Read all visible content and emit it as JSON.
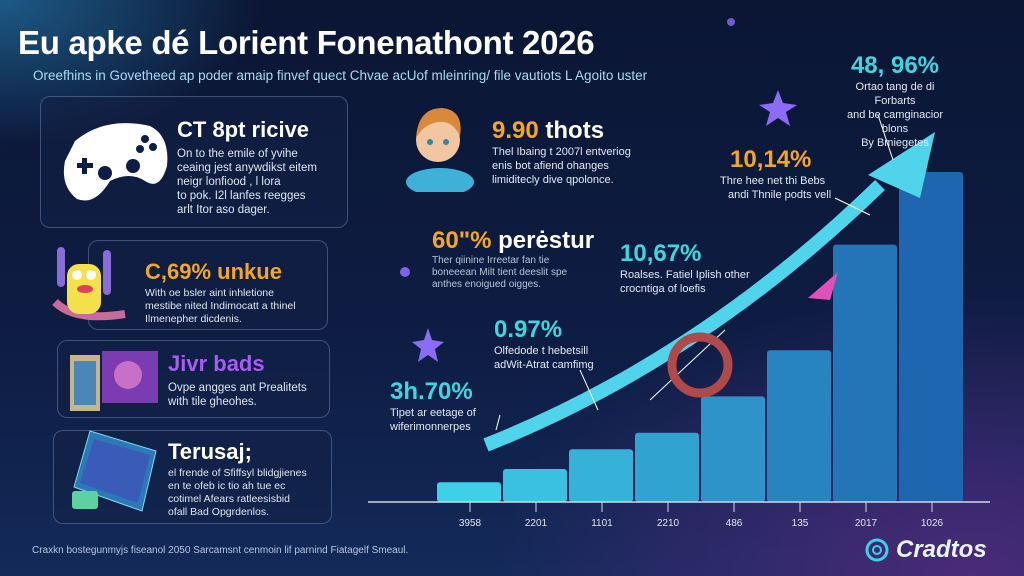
{
  "header": {
    "title": "Eu apke dé Lorient Fonenathont 2026",
    "subtitle": "Oreefhins in Govetheed ap poder amaip finvef quect Chvae acUof mleinring/ file vautiots L Agoito uster"
  },
  "cards": [
    {
      "title": "CT 8pt ricive",
      "desc": [
        "On to the emile of yvihe",
        "ceaing jest anywdikst eitem",
        "neigr lonfiood , l lora",
        "to pok. I2l lanfes reegges",
        "arlt Itor aso dager."
      ],
      "icon": "gamepad-icon",
      "title_color": "#ffffff"
    },
    {
      "title": "C,69% unkue",
      "desc": [
        "With oe bsler aint inhletione",
        "mestibe nited Indimocatt a thinel",
        "Ilmenepher dicdenis."
      ],
      "icon": "cartoon-mascot-icon",
      "title_color": "#f5a623"
    },
    {
      "title": "Jivr bads",
      "desc": [
        "Ovpe angges ant Prealitets",
        "with tile gheohes."
      ],
      "icon": "game-boxes-icon",
      "title_color": "#a55ff0"
    },
    {
      "title": "Terusaj;",
      "desc": [
        "el frende of Sfiffsyl blidgjienes",
        "en te ofeb ic tio ah tue ec",
        "cotimel Afears ratleesisbid",
        "ofall Bad Opgrdenlos."
      ],
      "icon": "game-screen-icon",
      "title_color": "#ffffff"
    }
  ],
  "annotations": [
    {
      "value": "9.90",
      "label": " thots",
      "desc": [
        "Thel Ibaing t 2007l entveriog",
        "enis bot afiend ohanges",
        "limiditecly dive qpolonce."
      ]
    },
    {
      "value": "60\"%",
      "label": " perėstur",
      "desc": [
        "Ther qiinine Irreetar fan tie",
        "boneeean Milt tient deeslit spe",
        "anthes enoigued oigges."
      ]
    },
    {
      "value": "10,67%",
      "label": "",
      "desc": [
        "Roalses. Fatiel Iplish other",
        "crocntiga of loefis"
      ]
    },
    {
      "value": "0.97%",
      "label": "",
      "desc": [
        "Olfedode t hebetsill",
        "adWit-Atrat camfimg"
      ]
    },
    {
      "value": "3h.70%",
      "label": "",
      "desc": [
        "Tipet ar eetage of",
        "wiferimonnerpes"
      ]
    },
    {
      "value": "10,14%",
      "label": "",
      "desc": [
        "Thre hee net thi Bebs",
        "andi Thnile podts vell"
      ]
    },
    {
      "value": "48, 96%",
      "label": "",
      "desc": [
        "Ortao tang de di Forbarts",
        "and be camginacior blons",
        "By Bmiegetes"
      ]
    }
  ],
  "chart_data": {
    "type": "bar",
    "categories": [
      "3958",
      "2201",
      "1101",
      "2210",
      "486",
      "135",
      "2017",
      "1026"
    ],
    "values": [
      6,
      10,
      16,
      21,
      32,
      46,
      78,
      100
    ],
    "trend_arrow": true,
    "colors": {
      "bar_light": "#3fd0e8",
      "bar_dark": "#1f66b0",
      "arrow": "#4fd4ec"
    }
  },
  "footer": {
    "text": "Craxkn bostegunmyjs fiseanol 2050 Sarcamsnt cenmoin lif parnind Fiatagelf Smeaul."
  },
  "logo": {
    "text": "Cradtos",
    "icon": "logo-icon"
  }
}
